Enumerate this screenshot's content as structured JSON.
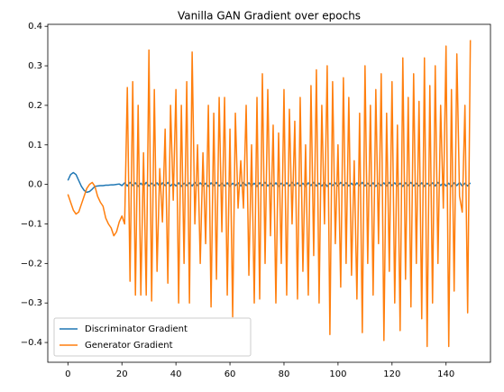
{
  "chart_data": {
    "type": "line",
    "title": "Vanilla GAN Gradient over epochs",
    "x": [
      0,
      1,
      2,
      3,
      4,
      5,
      6,
      7,
      8,
      9,
      10,
      11,
      12,
      13,
      14,
      15,
      16,
      17,
      18,
      19,
      20,
      21,
      22,
      23,
      24,
      25,
      26,
      27,
      28,
      29,
      30,
      31,
      32,
      33,
      34,
      35,
      36,
      37,
      38,
      39,
      40,
      41,
      42,
      43,
      44,
      45,
      46,
      47,
      48,
      49,
      50,
      51,
      52,
      53,
      54,
      55,
      56,
      57,
      58,
      59,
      60,
      61,
      62,
      63,
      64,
      65,
      66,
      67,
      68,
      69,
      70,
      71,
      72,
      73,
      74,
      75,
      76,
      77,
      78,
      79,
      80,
      81,
      82,
      83,
      84,
      85,
      86,
      87,
      88,
      89,
      90,
      91,
      92,
      93,
      94,
      95,
      96,
      97,
      98,
      99,
      100,
      101,
      102,
      103,
      104,
      105,
      106,
      107,
      108,
      109,
      110,
      111,
      112,
      113,
      114,
      115,
      116,
      117,
      118,
      119,
      120,
      121,
      122,
      123,
      124,
      125,
      126,
      127,
      128,
      129,
      130,
      131,
      132,
      133,
      134,
      135,
      136,
      137,
      138,
      139,
      140,
      141,
      142,
      143,
      144,
      145,
      146,
      147,
      148,
      149
    ],
    "series": [
      {
        "name": "Discriminator Gradient",
        "color": "#1f77b4",
        "values": [
          0.01,
          0.025,
          0.03,
          0.025,
          0.01,
          -0.005,
          -0.015,
          -0.02,
          -0.018,
          -0.012,
          -0.005,
          -0.004,
          -0.003,
          -0.003,
          -0.002,
          -0.002,
          -0.001,
          -0.001,
          0,
          0.001,
          -0.003,
          0.004,
          -0.004,
          0.005,
          -0.003,
          0.004,
          -0.005,
          0.003,
          -0.004,
          0.005,
          -0.004,
          0.003,
          -0.003,
          0.004,
          -0.005,
          0.004,
          -0.003,
          0.005,
          -0.004,
          0.003,
          -0.004,
          0.004,
          -0.005,
          0.003,
          -0.003,
          0.004,
          -0.004,
          0.005,
          -0.003,
          0.004,
          -0.004,
          0.003,
          -0.005,
          0.004,
          -0.003,
          0.005,
          -0.004,
          0.003,
          -0.004,
          0.004,
          -0.005,
          0.003,
          -0.003,
          0.004,
          -0.004,
          0.005,
          -0.003,
          0.004,
          -0.004,
          0.003,
          -0.005,
          0.004,
          -0.003,
          0.005,
          -0.004,
          0.003,
          -0.004,
          0.004,
          -0.005,
          0.003,
          -0.003,
          0.004,
          -0.004,
          0.005,
          -0.003,
          0.004,
          -0.004,
          0.003,
          -0.005,
          0.004,
          -0.003,
          0.005,
          -0.004,
          0.003,
          -0.004,
          0.004,
          -0.005,
          0.003,
          -0.003,
          0.004,
          -0.004,
          0.005,
          -0.003,
          0.004,
          -0.004,
          0.003,
          -0.005,
          0.004,
          -0.003,
          0.005,
          -0.004,
          0.003,
          -0.004,
          0.004,
          -0.005,
          0.003,
          -0.003,
          0.004,
          -0.004,
          0.005,
          -0.003,
          0.004,
          -0.004,
          0.003,
          -0.005,
          0.004,
          -0.003,
          0.005,
          -0.004,
          0.003,
          -0.004,
          0.004,
          -0.005,
          0.003,
          -0.003,
          0.004,
          -0.004,
          0.005,
          -0.003,
          0.004,
          -0.004,
          0.003,
          -0.005,
          0.004,
          -0.003,
          0.005,
          -0.004,
          0.003,
          -0.004,
          0.004
        ]
      },
      {
        "name": "Generator Gradient",
        "color": "#ff7f0e",
        "values": [
          -0.025,
          -0.045,
          -0.065,
          -0.075,
          -0.07,
          -0.05,
          -0.03,
          -0.01,
          0.0,
          0.005,
          -0.005,
          -0.03,
          -0.045,
          -0.055,
          -0.085,
          -0.1,
          -0.11,
          -0.13,
          -0.12,
          -0.095,
          -0.08,
          -0.1,
          0.245,
          -0.245,
          0.26,
          -0.28,
          0.2,
          -0.28,
          0.08,
          -0.28,
          0.34,
          -0.295,
          0.24,
          -0.22,
          0.04,
          -0.095,
          0.14,
          -0.25,
          0.2,
          -0.04,
          0.24,
          -0.3,
          0.2,
          -0.2,
          0.26,
          -0.3,
          0.335,
          -0.1,
          0.1,
          -0.2,
          0.08,
          -0.15,
          0.2,
          -0.31,
          0.18,
          -0.24,
          0.22,
          -0.12,
          0.22,
          -0.28,
          0.14,
          -0.335,
          0.18,
          -0.06,
          0.06,
          -0.06,
          0.2,
          -0.23,
          0.1,
          -0.3,
          0.22,
          -0.29,
          0.28,
          -0.2,
          0.24,
          -0.13,
          0.15,
          -0.3,
          0.13,
          -0.2,
          0.24,
          -0.28,
          0.19,
          -0.1,
          0.16,
          -0.29,
          0.22,
          -0.22,
          0.1,
          -0.28,
          0.25,
          -0.18,
          0.29,
          -0.3,
          0.2,
          -0.1,
          0.3,
          -0.38,
          0.26,
          -0.15,
          0.1,
          -0.26,
          0.27,
          -0.2,
          0.22,
          -0.23,
          0.06,
          -0.29,
          0.18,
          -0.375,
          0.3,
          -0.2,
          0.2,
          -0.28,
          0.24,
          -0.15,
          0.28,
          -0.395,
          0.18,
          -0.22,
          0.26,
          -0.3,
          0.15,
          -0.37,
          0.32,
          -0.24,
          0.22,
          -0.31,
          0.28,
          -0.2,
          0.21,
          -0.34,
          0.32,
          -0.41,
          0.25,
          -0.3,
          0.3,
          -0.2,
          0.2,
          -0.06,
          0.35,
          -0.41,
          0.24,
          -0.27,
          0.33,
          -0.03,
          -0.07,
          0.2,
          -0.325,
          0.365
        ]
      }
    ],
    "xlim": [
      -7.45,
      156.45
    ],
    "xticks": [
      0,
      20,
      40,
      60,
      80,
      100,
      120,
      140
    ],
    "ylim": [
      -0.45,
      0.405
    ],
    "yticks": [
      {
        "value": -0.4,
        "label": "−0.4"
      },
      {
        "value": -0.3,
        "label": "−0.3"
      },
      {
        "value": -0.2,
        "label": "−0.2"
      },
      {
        "value": -0.1,
        "label": "−0.1"
      },
      {
        "value": 0,
        "label": "0.0"
      },
      {
        "value": 0.1,
        "label": "0.1"
      },
      {
        "value": 0.2,
        "label": "0.2"
      },
      {
        "value": 0.3,
        "label": "0.3"
      },
      {
        "value": 0.4,
        "label": "0.4"
      }
    ],
    "legend": "lower left",
    "grid": false
  }
}
